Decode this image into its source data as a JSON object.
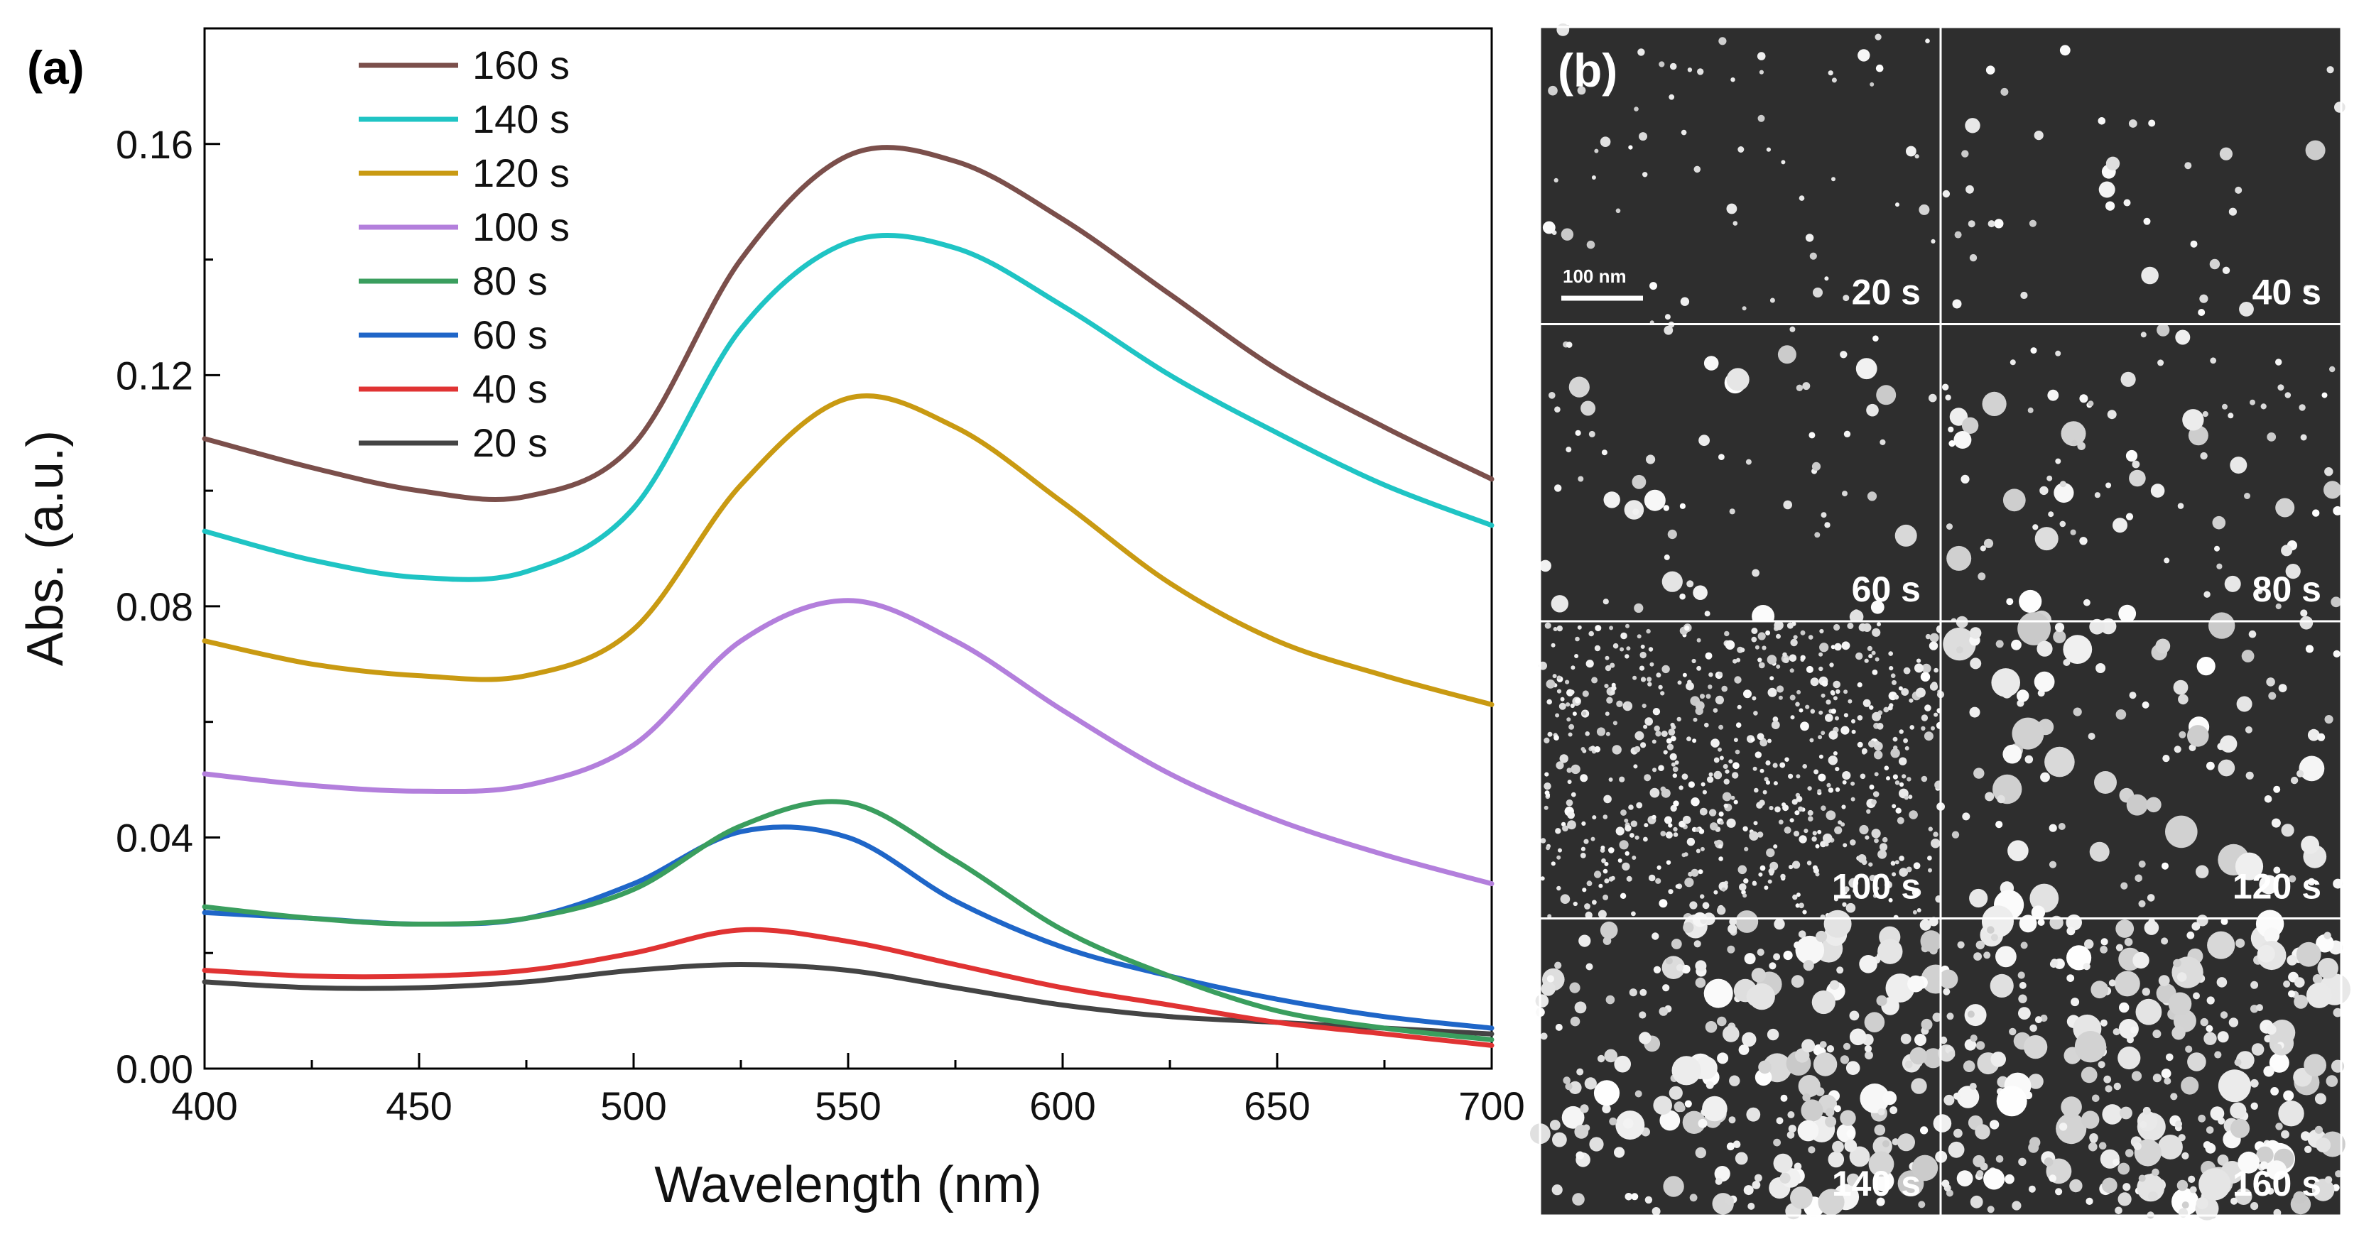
{
  "chart_data": {
    "type": "line",
    "panel_label": "(a)",
    "title": "",
    "xlabel": "Wavelength (nm)",
    "ylabel": "Abs. (a.u.)",
    "xlim": [
      400,
      700
    ],
    "ylim": [
      0,
      0.18
    ],
    "xticks": [
      400,
      450,
      500,
      550,
      600,
      650,
      700
    ],
    "xtick_labels": [
      "400",
      "450",
      "500",
      "550",
      "600",
      "650",
      "700"
    ],
    "yticks": [
      0,
      0.04,
      0.08,
      0.12,
      0.16
    ],
    "ytick_labels": [
      "0.00",
      "0.04",
      "0.08",
      "0.12",
      "0.16"
    ],
    "grid": false,
    "legend_position": "top-left",
    "x": [
      400,
      425,
      450,
      475,
      500,
      525,
      550,
      575,
      600,
      625,
      650,
      675,
      700
    ],
    "series": [
      {
        "name": "160 s",
        "color": "#7b4f4b",
        "values": [
          0.109,
          0.104,
          0.1,
          0.099,
          0.108,
          0.14,
          0.158,
          0.157,
          0.147,
          0.134,
          0.121,
          0.111,
          0.102
        ]
      },
      {
        "name": "140 s",
        "color": "#1fc4c4",
        "values": [
          0.093,
          0.088,
          0.085,
          0.086,
          0.097,
          0.128,
          0.143,
          0.142,
          0.132,
          0.12,
          0.11,
          0.101,
          0.094
        ]
      },
      {
        "name": "120 s",
        "color": "#c99a12",
        "values": [
          0.074,
          0.07,
          0.068,
          0.068,
          0.076,
          0.101,
          0.116,
          0.111,
          0.098,
          0.084,
          0.074,
          0.068,
          0.063
        ]
      },
      {
        "name": "100 s",
        "color": "#b37fdc",
        "values": [
          0.051,
          0.049,
          0.048,
          0.049,
          0.056,
          0.074,
          0.081,
          0.074,
          0.062,
          0.051,
          0.043,
          0.037,
          0.032
        ]
      },
      {
        "name": "80 s",
        "color": "#3a9e5e",
        "values": [
          0.028,
          0.026,
          0.025,
          0.026,
          0.031,
          0.042,
          0.046,
          0.036,
          0.024,
          0.016,
          0.01,
          0.007,
          0.005
        ]
      },
      {
        "name": "60 s",
        "color": "#1f66c8",
        "values": [
          0.027,
          0.026,
          0.025,
          0.026,
          0.032,
          0.041,
          0.04,
          0.029,
          0.021,
          0.016,
          0.012,
          0.009,
          0.007
        ]
      },
      {
        "name": "40 s",
        "color": "#e03333",
        "values": [
          0.017,
          0.016,
          0.016,
          0.017,
          0.02,
          0.024,
          0.022,
          0.018,
          0.014,
          0.011,
          0.008,
          0.006,
          0.004
        ]
      },
      {
        "name": "20 s",
        "color": "#444444",
        "values": [
          0.015,
          0.014,
          0.014,
          0.015,
          0.017,
          0.018,
          0.017,
          0.014,
          0.011,
          0.009,
          0.008,
          0.007,
          0.006
        ]
      }
    ]
  },
  "sem_panel": {
    "panel_label": "(b)",
    "scale_bar_label": "100 nm",
    "tiles": [
      {
        "label": "20 s",
        "density": 60,
        "min_r": 3,
        "max_r": 9,
        "seed": 11
      },
      {
        "label": "40 s",
        "density": 40,
        "min_r": 5,
        "max_r": 14,
        "seed": 23
      },
      {
        "label": "60 s",
        "density": 70,
        "min_r": 4,
        "max_r": 17,
        "seed": 37
      },
      {
        "label": "80 s",
        "density": 95,
        "min_r": 4,
        "max_r": 18,
        "seed": 41
      },
      {
        "label": "100 s",
        "density": 650,
        "min_r": 3,
        "max_r": 7,
        "seed": 53
      },
      {
        "label": "120 s",
        "density": 115,
        "min_r": 5,
        "max_r": 24,
        "seed": 67
      },
      {
        "label": "140 s",
        "density": 260,
        "min_r": 5,
        "max_r": 21,
        "seed": 71
      },
      {
        "label": "160 s",
        "density": 330,
        "min_r": 5,
        "max_r": 23,
        "seed": 83
      }
    ]
  }
}
